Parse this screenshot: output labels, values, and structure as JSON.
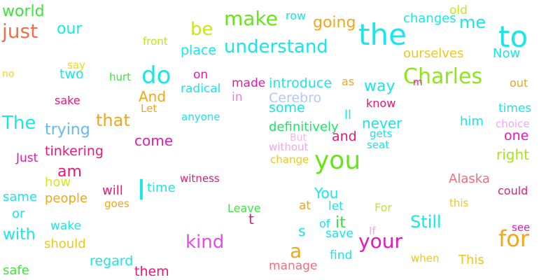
{
  "words": [
    {
      "text": "world",
      "color": "#39e639"
    },
    {
      "text": "just",
      "color": "#f26d4a"
    },
    {
      "text": "our",
      "color": "#19e6e6"
    },
    {
      "text": "front",
      "color": "#b8e619"
    },
    {
      "text": "be",
      "color": "#c8e619"
    },
    {
      "text": "make",
      "color": "#66e619"
    },
    {
      "text": "row",
      "color": "#19e6e6"
    },
    {
      "text": "going",
      "color": "#f2a619"
    },
    {
      "text": "the",
      "color": "#19e6f2"
    },
    {
      "text": "changes",
      "color": "#19e6e6"
    },
    {
      "text": "old",
      "color": "#c8e619"
    },
    {
      "text": "me",
      "color": "#19e6e6"
    },
    {
      "text": "to",
      "color": "#19e6e6"
    },
    {
      "text": "place",
      "color": "#19e6e6"
    },
    {
      "text": "understand",
      "color": "#19e6e6"
    },
    {
      "text": "ourselves",
      "color": "#f2c619"
    },
    {
      "text": "Now",
      "color": "#19e6e6"
    },
    {
      "text": "say",
      "color": "#f2d619"
    },
    {
      "text": "no",
      "color": "#f2d619"
    },
    {
      "text": "two",
      "color": "#19e6e6"
    },
    {
      "text": "hurt",
      "color": "#39e639"
    },
    {
      "text": "do",
      "color": "#19e6e6"
    },
    {
      "text": "on",
      "color": "#e619b8"
    },
    {
      "text": "radical",
      "color": "#19e6e6"
    },
    {
      "text": "made",
      "color": "#e619a6"
    },
    {
      "text": "introduce",
      "color": "#19e6e6"
    },
    {
      "text": "as",
      "color": "#f2a619"
    },
    {
      "text": "way",
      "color": "#19e6e6"
    },
    {
      "text": "Charles",
      "color": "#8ee619"
    },
    {
      "text": "m",
      "color": "#e619b8"
    },
    {
      "text": "out",
      "color": "#f2a619"
    },
    {
      "text": "sake",
      "color": "#e6197a"
    },
    {
      "text": "And",
      "color": "#f2a619"
    },
    {
      "text": "Let",
      "color": "#f2a619"
    },
    {
      "text": "in",
      "color": "#f27ae6"
    },
    {
      "text": "Cerebro",
      "color": "#b3c8f2"
    },
    {
      "text": "some",
      "color": "#19e6e6"
    },
    {
      "text": "know",
      "color": "#e61966"
    },
    {
      "text": "times",
      "color": "#19e6e6"
    },
    {
      "text": "The",
      "color": "#19e6e6"
    },
    {
      "text": "that",
      "color": "#f2a619"
    },
    {
      "text": "anyone",
      "color": "#19e6e6"
    },
    {
      "text": "ll",
      "color": "#19e6e6"
    },
    {
      "text": "never",
      "color": "#19e6e6"
    },
    {
      "text": "him",
      "color": "#19e6e6"
    },
    {
      "text": "choice",
      "color": "#f2a6f2"
    },
    {
      "text": "trying",
      "color": "#66b8f2"
    },
    {
      "text": "definitively",
      "color": "#19e666"
    },
    {
      "text": "gets",
      "color": "#19e6e6"
    },
    {
      "text": "one",
      "color": "#e619b8"
    },
    {
      "text": "come",
      "color": "#e619b8"
    },
    {
      "text": "But",
      "color": "#f2b8e6"
    },
    {
      "text": "and",
      "color": "#e6197a"
    },
    {
      "text": "seat",
      "color": "#19e6e6"
    },
    {
      "text": "tinkering",
      "color": "#e6197a"
    },
    {
      "text": "without",
      "color": "#f2a6e6"
    },
    {
      "text": "right",
      "color": "#a6e619"
    },
    {
      "text": "Just",
      "color": "#e619a6"
    },
    {
      "text": "change",
      "color": "#f2c619"
    },
    {
      "text": "you",
      "color": "#66e619"
    },
    {
      "text": "am",
      "color": "#e6197a"
    },
    {
      "text": "how",
      "color": "#d6e619"
    },
    {
      "text": "witness",
      "color": "#e6197a"
    },
    {
      "text": "Alaska",
      "color": "#f26d7a"
    },
    {
      "text": "will",
      "color": "#e6197a"
    },
    {
      "text": "I",
      "color": "#19e6e6"
    },
    {
      "text": "time",
      "color": "#19e6e6"
    },
    {
      "text": "could",
      "color": "#e6197a"
    },
    {
      "text": "same",
      "color": "#19e6e6"
    },
    {
      "text": "people",
      "color": "#f2a619"
    },
    {
      "text": "You",
      "color": "#19e6e6"
    },
    {
      "text": "this",
      "color": "#f2c619"
    },
    {
      "text": "goes",
      "color": "#f2a619"
    },
    {
      "text": "or",
      "color": "#19e6e6"
    },
    {
      "text": "Leave",
      "color": "#39e639"
    },
    {
      "text": "at",
      "color": "#f2a619"
    },
    {
      "text": "let",
      "color": "#19e6e6"
    },
    {
      "text": "For",
      "color": "#c8e619"
    },
    {
      "text": "t",
      "color": "#e6197a"
    },
    {
      "text": "wake",
      "color": "#19e6e6"
    },
    {
      "text": "Still",
      "color": "#19e6e6"
    },
    {
      "text": "see",
      "color": "#e619b8"
    },
    {
      "text": "with",
      "color": "#19e6e6"
    },
    {
      "text": "of",
      "color": "#19e6e6"
    },
    {
      "text": "it",
      "color": "#39e639"
    },
    {
      "text": "s",
      "color": "#19e6e6"
    },
    {
      "text": "save",
      "color": "#19e6e6"
    },
    {
      "text": "If",
      "color": "#f2a6e6"
    },
    {
      "text": "for",
      "color": "#f2a619"
    },
    {
      "text": "should",
      "color": "#f2c619"
    },
    {
      "text": "kind",
      "color": "#e64ae6"
    },
    {
      "text": "your",
      "color": "#e619b8"
    },
    {
      "text": "a",
      "color": "#f2a619"
    },
    {
      "text": "find",
      "color": "#19e6e6"
    },
    {
      "text": "when",
      "color": "#f2c619"
    },
    {
      "text": "This",
      "color": "#f2c619"
    },
    {
      "text": "regard",
      "color": "#19e6e6"
    },
    {
      "text": "safe",
      "color": "#39e639"
    },
    {
      "text": "them",
      "color": "#e6197a"
    },
    {
      "text": "manage",
      "color": "#f26d7a"
    }
  ]
}
